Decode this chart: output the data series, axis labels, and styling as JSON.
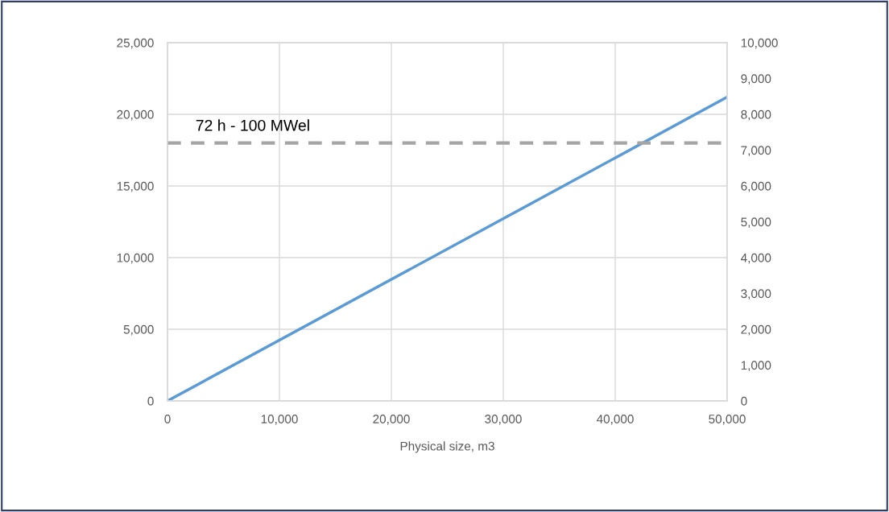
{
  "chart_data": {
    "type": "line",
    "xlabel": "Physical size, m3",
    "x": [
      0,
      50000
    ],
    "series": [
      {
        "color": "#5b9bd5",
        "values": [
          0,
          21200
        ]
      }
    ],
    "xlim": [
      0,
      50000
    ],
    "xticks": [
      {
        "value": 0,
        "label": "0"
      },
      {
        "value": 10000,
        "label": "10,000"
      },
      {
        "value": 20000,
        "label": "20,000"
      },
      {
        "value": 30000,
        "label": "30,000"
      },
      {
        "value": 40000,
        "label": "40,000"
      },
      {
        "value": 50000,
        "label": "50,000"
      }
    ],
    "ylim": [
      0,
      25000
    ],
    "yticks": [
      {
        "value": 0,
        "label": "0"
      },
      {
        "value": 5000,
        "label": "5,000"
      },
      {
        "value": 10000,
        "label": "10,000"
      },
      {
        "value": 15000,
        "label": "15,000"
      },
      {
        "value": 20000,
        "label": "20,000"
      },
      {
        "value": 25000,
        "label": "25,000"
      }
    ],
    "y2lim": [
      0,
      10000
    ],
    "y2ticks": [
      {
        "value": 0,
        "label": "0"
      },
      {
        "value": 1000,
        "label": "1,000"
      },
      {
        "value": 2000,
        "label": "2,000"
      },
      {
        "value": 3000,
        "label": "3,000"
      },
      {
        "value": 4000,
        "label": "4,000"
      },
      {
        "value": 5000,
        "label": "5,000"
      },
      {
        "value": 6000,
        "label": "6,000"
      },
      {
        "value": 7000,
        "label": "7,000"
      },
      {
        "value": 8000,
        "label": "8,000"
      },
      {
        "value": 9000,
        "label": "9,000"
      },
      {
        "value": 10000,
        "label": "10,000"
      }
    ],
    "ref_lines": [
      {
        "axis": "y2",
        "value": 7200,
        "label": "72 h - 100 MWel",
        "color": "#a5a5a5",
        "line_style": "dashed"
      }
    ],
    "grid": true,
    "legend": false,
    "marker": "none",
    "line_style": "solid"
  }
}
